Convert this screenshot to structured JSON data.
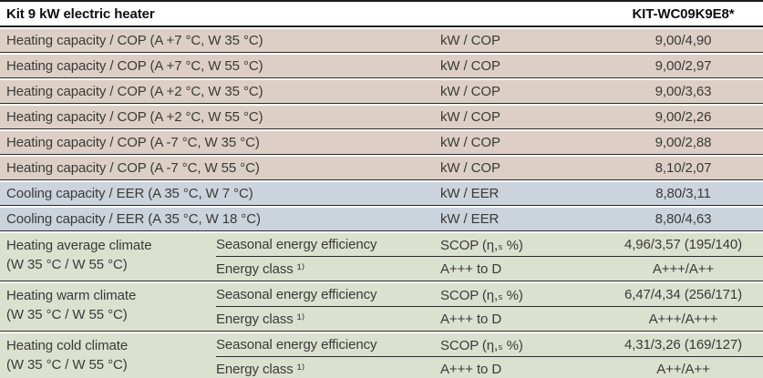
{
  "header": {
    "title": "Kit 9 kW electric heater",
    "model": "KIT-WC09K9E8*"
  },
  "colors": {
    "heating_row_bg": "#ddcfc5",
    "cooling_row_bg": "#cbd3dd",
    "seasonal_row_bg": "#dbe1cf",
    "separator_line": "#2b2b28"
  },
  "rows": [
    {
      "label": "Heating capacity / COP (A +7 °C, W 35 °C)",
      "unit": "kW / COP",
      "value": "9,00/4,90"
    },
    {
      "label": "Heating capacity / COP (A +7 °C, W 55 °C)",
      "unit": "kW / COP",
      "value": "9,00/2,97"
    },
    {
      "label": "Heating capacity / COP (A +2 °C, W 35 °C)",
      "unit": "kW / COP",
      "value": "9,00/3,63"
    },
    {
      "label": "Heating capacity / COP (A +2 °C, W 55 °C)",
      "unit": "kW / COP",
      "value": "9,00/2,26"
    },
    {
      "label": "Heating capacity / COP (A -7 °C, W 35 °C)",
      "unit": "kW / COP",
      "value": "9,00/2,88"
    },
    {
      "label": "Heating capacity / COP (A -7 °C, W 55 °C)",
      "unit": "kW / COP",
      "value": "8,10/2,07"
    },
    {
      "label": "Cooling capacity / EER (A 35 °C, W 7 °C)",
      "unit": "kW / EER",
      "value": "8,80/3,11"
    },
    {
      "label": "Cooling capacity / EER (A 35 °C, W 18 °C)",
      "unit": "kW / EER",
      "value": "8,80/4,63"
    }
  ],
  "climate_groups": [
    {
      "label_line1": "Heating average climate",
      "label_line2": "(W 35 °C / W 55 °C)",
      "efficiency": {
        "sublabel": "Seasonal energy efficiency",
        "unit": "SCOP (η,ₛ %)",
        "value": "4,96/3,57 (195/140)"
      },
      "energy_class": {
        "sublabel": "Energy class ¹⁾",
        "unit": "A+++ to D",
        "value": "A+++/A++"
      }
    },
    {
      "label_line1": "Heating warm climate",
      "label_line2": "(W 35 °C / W 55 °C)",
      "efficiency": {
        "sublabel": "Seasonal energy efficiency",
        "unit": "SCOP (η,ₛ %)",
        "value": "6,47/4,34 (256/171)"
      },
      "energy_class": {
        "sublabel": "Energy class ¹⁾",
        "unit": "A+++ to D",
        "value": "A+++/A+++"
      }
    },
    {
      "label_line1": "Heating cold climate",
      "label_line2": "(W 35 °C / W 55 °C)",
      "efficiency": {
        "sublabel": "Seasonal energy efficiency",
        "unit": "SCOP (η,ₛ %)",
        "value": "4,31/3,26 (169/127)"
      },
      "energy_class": {
        "sublabel": "Energy class ¹⁾",
        "unit": "A+++ to D",
        "value": "A++/A++"
      }
    }
  ]
}
